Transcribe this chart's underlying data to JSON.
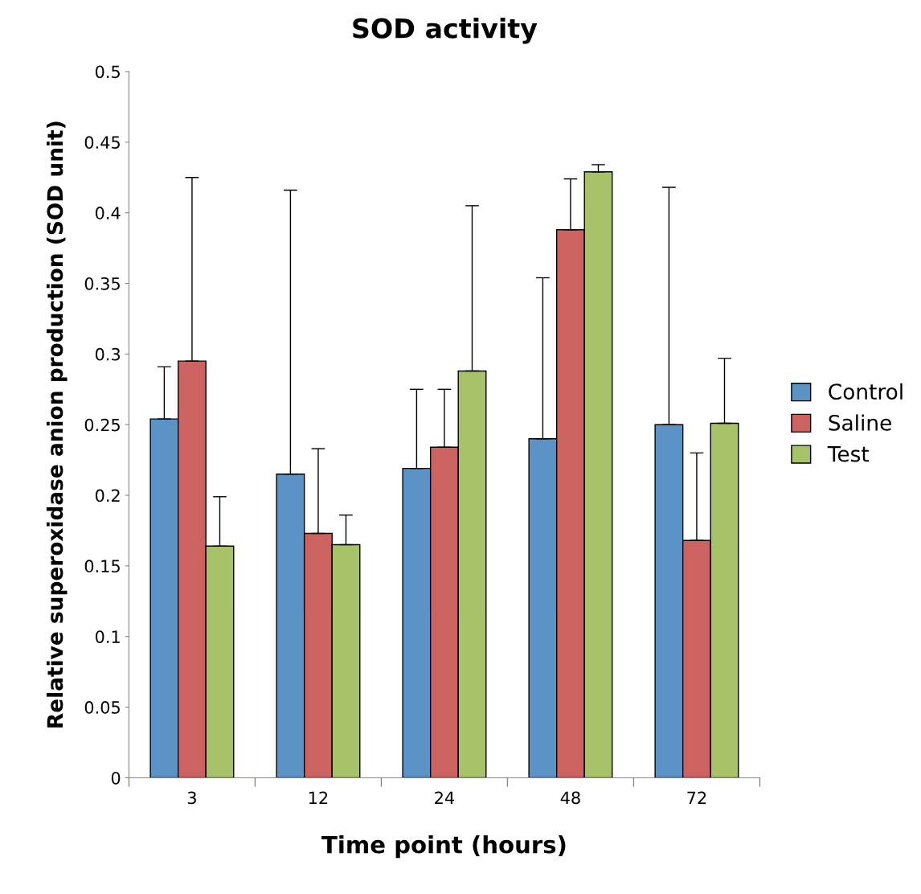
{
  "chart_data": {
    "type": "bar",
    "title": "SOD activity",
    "xlabel": "Time point (hours)",
    "ylabel": "Relative superoxidase anion production (SOD unit)",
    "categories": [
      "3",
      "12",
      "24",
      "48",
      "72"
    ],
    "series": [
      {
        "name": "Control",
        "color": "#5b93c7",
        "values": [
          0.254,
          0.215,
          0.219,
          0.24,
          0.25
        ],
        "errors": [
          [
            0.254,
            0.291
          ],
          [
            0.215,
            0.416
          ],
          [
            0.219,
            0.275
          ],
          [
            0.24,
            0.354
          ],
          [
            0.25,
            0.418
          ]
        ]
      },
      {
        "name": "Saline",
        "color": "#cc6360",
        "values": [
          0.295,
          0.173,
          0.234,
          0.388,
          0.168
        ],
        "errors": [
          [
            0.295,
            0.425
          ],
          [
            0.173,
            0.233
          ],
          [
            0.234,
            0.275
          ],
          [
            0.388,
            0.424
          ],
          [
            0.168,
            0.23
          ]
        ]
      },
      {
        "name": "Test",
        "color": "#a8c26a",
        "values": [
          0.164,
          0.165,
          0.288,
          0.429,
          0.251
        ],
        "errors": [
          [
            0.164,
            0.199
          ],
          [
            0.165,
            0.186
          ],
          [
            0.288,
            0.405
          ],
          [
            0.429,
            0.434
          ],
          [
            0.251,
            0.297
          ]
        ]
      }
    ],
    "ylim": [
      0,
      0.5
    ],
    "yticks": [
      0,
      0.05,
      0.1,
      0.15,
      0.2,
      0.25,
      0.3,
      0.35,
      0.4,
      0.45,
      0.5
    ],
    "grid": false,
    "legend": "right"
  }
}
